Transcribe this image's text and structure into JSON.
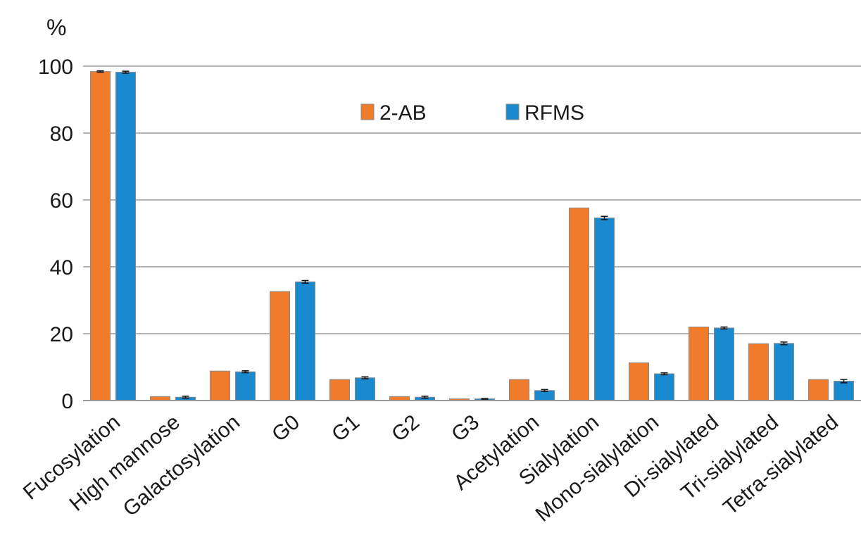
{
  "chart_data": {
    "type": "bar",
    "ylabel": "%",
    "ylim": [
      0,
      100
    ],
    "yticks": [
      0,
      20,
      40,
      60,
      80,
      100
    ],
    "grid": true,
    "legend_position": "top-center",
    "categories": [
      "Fucosylation",
      "High mannose",
      "Galactosylation",
      "G0",
      "G1",
      "G2",
      "G3",
      "Acetylation",
      "Sialylation",
      "Mono-sialylation",
      "Di-sialylated",
      "Tri-sialylated",
      "Tetra-sialylated"
    ],
    "series": [
      {
        "name": "2-AB",
        "color": "#f07b2b",
        "values": [
          98.4,
          1.2,
          8.8,
          32.6,
          6.3,
          1.2,
          0.5,
          6.3,
          57.6,
          11.3,
          22.0,
          17.0,
          6.3
        ],
        "errors": [
          0.2,
          0,
          0,
          0,
          0,
          0,
          0,
          0,
          0,
          0,
          0,
          0,
          0
        ]
      },
      {
        "name": "RFMS",
        "color": "#1a8ad0",
        "values": [
          98.2,
          1.0,
          8.6,
          35.5,
          6.8,
          1.0,
          0.5,
          3.0,
          54.6,
          8.0,
          21.7,
          17.1,
          5.8
        ],
        "errors": [
          0.3,
          0.3,
          0.3,
          0.4,
          0.3,
          0.3,
          0.1,
          0.3,
          0.5,
          0.3,
          0.3,
          0.4,
          0.5
        ]
      }
    ]
  }
}
